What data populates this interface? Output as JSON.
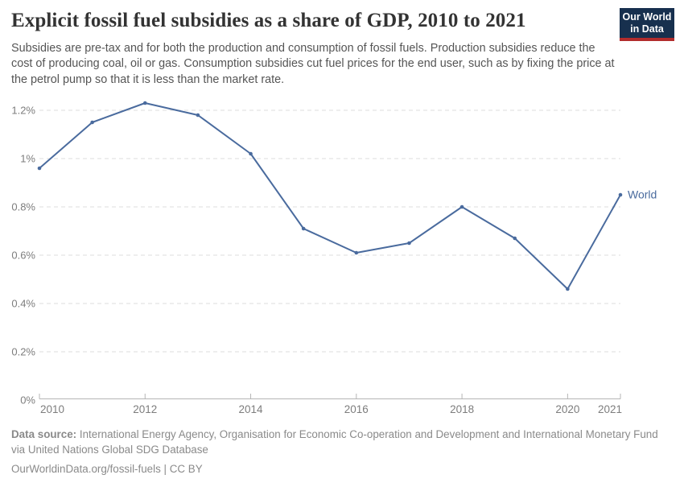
{
  "header": {
    "title": "Explicit fossil fuel subsidies as a share of GDP, 2010 to 2021",
    "subtitle": "Subsidies are pre-tax and for both the production and consumption of fossil fuels. Production subsidies reduce the cost of producing coal, oil or gas. Consumption subsidies cut fuel prices for the end user, such as by fixing the price at the petrol pump so that it is less than the market rate.",
    "logo": {
      "line1": "Our World",
      "line2": "in Data",
      "bg_color": "#17304e",
      "bar_color": "#b22c2c"
    }
  },
  "chart_data": {
    "type": "line",
    "title": "Explicit fossil fuel subsidies as a share of GDP, 2010 to 2021",
    "x": [
      2010,
      2011,
      2012,
      2013,
      2014,
      2015,
      2016,
      2017,
      2018,
      2019,
      2020,
      2021
    ],
    "series": [
      {
        "name": "World",
        "color": "#4a6b9e",
        "values": [
          0.96,
          1.15,
          1.23,
          1.18,
          1.02,
          0.71,
          0.61,
          0.65,
          0.8,
          0.67,
          0.46,
          0.85
        ]
      }
    ],
    "x_ticks": [
      2010,
      2012,
      2014,
      2016,
      2018,
      2020,
      2021
    ],
    "y_ticks": [
      {
        "value": 0,
        "label": "0%"
      },
      {
        "value": 0.2,
        "label": "0.2%"
      },
      {
        "value": 0.4,
        "label": "0.4%"
      },
      {
        "value": 0.6,
        "label": "0.6%"
      },
      {
        "value": 0.8,
        "label": "0.8%"
      },
      {
        "value": 1.0,
        "label": "1%"
      },
      {
        "value": 1.2,
        "label": "1.2%"
      }
    ],
    "ylim": [
      0,
      1.25
    ],
    "grid": true,
    "legend": "end-of-line-label",
    "colors": {
      "gridline": "#dcdcdc",
      "axis": "#b5b5b5",
      "tick_label": "#7d7d7d"
    }
  },
  "footer": {
    "source_label": "Data source:",
    "source_text": "International Energy Agency, Organisation for Economic Co-operation and Development and International Monetary Fund via United Nations Global SDG Database",
    "citation": "OurWorldinData.org/fossil-fuels | CC BY"
  }
}
